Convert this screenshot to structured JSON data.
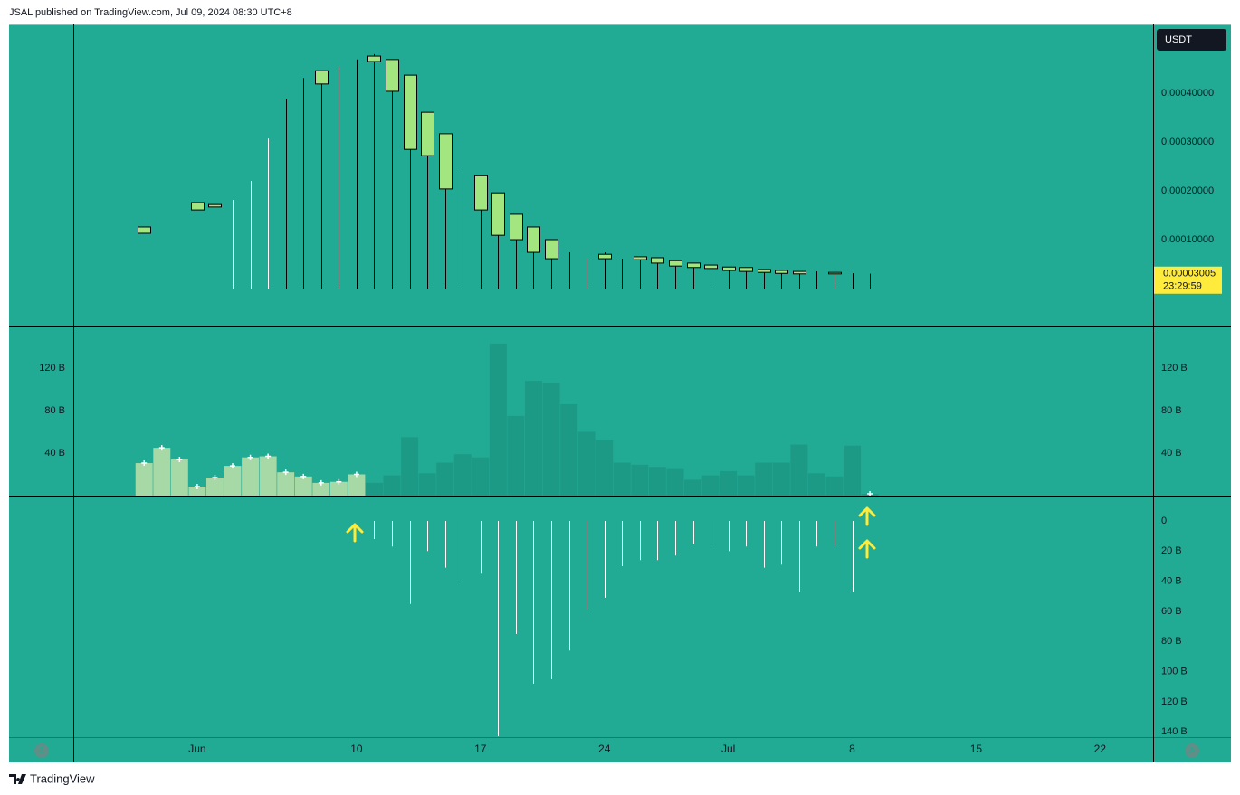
{
  "header": "JSAL published on TradingView.com, Jul 09, 2024 08:30 UTC+8",
  "footer_brand": "TradingView",
  "scale_buttons": [
    "Z",
    "A"
  ],
  "chart_data": [
    {
      "type": "candlestick",
      "currency": "USDT",
      "countdown": "23:29:59",
      "last_price": 3.005e-05,
      "color": "#a3e67f",
      "border_color": "#000000",
      "x": [
        "2024-05-29",
        "2024-06-01",
        "2024-06-02",
        "2024-06-03",
        "2024-06-04",
        "2024-06-05",
        "2024-06-06",
        "2024-06-07",
        "2024-06-08",
        "2024-06-09",
        "2024-06-10",
        "2024-06-11",
        "2024-06-12",
        "2024-06-13",
        "2024-06-14",
        "2024-06-15",
        "2024-06-16",
        "2024-06-17",
        "2024-06-18",
        "2024-06-19",
        "2024-06-20",
        "2024-06-21",
        "2024-06-22",
        "2024-06-23",
        "2024-06-24",
        "2024-06-25",
        "2024-06-26",
        "2024-06-27",
        "2024-06-28",
        "2024-06-29",
        "2024-06-30",
        "2024-07-01",
        "2024-07-02",
        "2024-07-03",
        "2024-07-04",
        "2024-07-05",
        "2024-07-06",
        "2024-07-07",
        "2024-07-08",
        "2024-07-09"
      ],
      "open": [
        0.000113,
        0.000161,
        0.000167,
        0.000181,
        0.00022,
        0.000307,
        0.000387,
        0.000431,
        0.000419,
        0.000456,
        0.000469,
        0.000465,
        0.000469,
        0.000437,
        0.000361,
        0.000317,
        0.000248,
        0.000231,
        0.000196,
        0.000152,
        0.000126,
        0.0001,
        7.4e-05,
        6.1e-05,
        7e-05,
        6.1e-05,
        6.5e-05,
        6.3e-05,
        5.7e-05,
        5.2e-05,
        4.8e-05,
        4.4e-05,
        4.3e-05,
        3.9e-05,
        3.7e-05,
        3.5e-05,
        3.5e-05,
        3.3e-05,
        3.1e-05,
        3.005e-05
      ],
      "high": [
        0.000126,
        0.000176,
        0.000172,
        0.000181,
        0.00022,
        0.000307,
        0.000387,
        0.000431,
        0.000446,
        0.000456,
        0.000469,
        0.00048,
        0.000469,
        0.000437,
        0.000361,
        0.000317,
        0.000248,
        0.000231,
        0.000196,
        0.000152,
        0.000126,
        0.0001,
        7.4e-05,
        6.1e-05,
        7.4e-05,
        6.1e-05,
        6.5e-05,
        6.3e-05,
        5.7e-05,
        5.2e-05,
        4.8e-05,
        4.4e-05,
        4.3e-05,
        3.9e-05,
        3.7e-05,
        3.5e-05,
        3.5e-05,
        3.3e-05,
        3.1e-05,
        3.005e-05
      ],
      "low": [
        0.000113,
        0.000161,
        0.000167,
        0,
        0,
        0,
        0,
        0,
        0,
        0,
        0,
        0,
        0,
        0,
        0,
        0,
        0,
        0,
        0,
        0,
        0,
        0,
        0,
        0,
        0,
        0,
        0,
        0,
        0,
        0,
        0,
        0,
        0,
        0,
        0,
        0,
        0,
        0,
        0,
        0
      ],
      "close": [
        0.000126,
        0.000176,
        0.000172,
        0.000181,
        0.00022,
        0.000307,
        0.000387,
        0.000431,
        0.000446,
        0.000456,
        0.000469,
        0.000476,
        0.000404,
        0.000285,
        0.000272,
        0.000204,
        0.000248,
        0.000161,
        0.000109,
        0.0001,
        7.4e-05,
        6.1e-05,
        7.4e-05,
        6.1e-05,
        6.1e-05,
        6.1e-05,
        5.9e-05,
        5.2e-05,
        4.6e-05,
        4.3e-05,
        4.1e-05,
        3.7e-05,
        3.5e-05,
        3.3e-05,
        3.1e-05,
        3e-05,
        3.5e-05,
        3e-05,
        3.1e-05,
        3.005e-05
      ],
      "wick_colors": [
        "#ffffff",
        "#ffffff",
        "#ffffff",
        "#ffffff",
        "#ffffff",
        "#ffffff",
        "#000000",
        "#000000",
        "#000000",
        "#000000",
        "#000000",
        "#000000",
        "#000000",
        "#000000",
        "#000000",
        "#000000",
        "#000000",
        "#000000",
        "#000000",
        "#000000",
        "#000000",
        "#000000",
        "#000000",
        "#000000",
        "#000000",
        "#000000",
        "#000000",
        "#000000",
        "#000000",
        "#000000",
        "#000000",
        "#000000",
        "#000000",
        "#000000",
        "#000000",
        "#000000",
        "#000000",
        "#000000",
        "#000000",
        "#000000"
      ],
      "ylim": [
        -7.6e-05,
        0.000541
      ],
      "yticks": [
        {
          "value": 0.0001,
          "label": "0.00010000"
        },
        {
          "value": 0.0002,
          "label": "0.00020000"
        },
        {
          "value": 0.0003,
          "label": "0.00030000"
        },
        {
          "value": 0.0004,
          "label": "0.00040000"
        }
      ],
      "ytick_sides": [
        "right"
      ]
    },
    {
      "type": "bar",
      "x": [
        "2024-05-29",
        "2024-05-30",
        "2024-05-31",
        "2024-06-01",
        "2024-06-02",
        "2024-06-03",
        "2024-06-04",
        "2024-06-05",
        "2024-06-06",
        "2024-06-07",
        "2024-06-08",
        "2024-06-09",
        "2024-06-10",
        "2024-06-11",
        "2024-06-12",
        "2024-06-13",
        "2024-06-14",
        "2024-06-15",
        "2024-06-16",
        "2024-06-17",
        "2024-06-18",
        "2024-06-19",
        "2024-06-20",
        "2024-06-21",
        "2024-06-22",
        "2024-06-23",
        "2024-06-24",
        "2024-06-25",
        "2024-06-26",
        "2024-06-27",
        "2024-06-28",
        "2024-06-29",
        "2024-06-30",
        "2024-07-01",
        "2024-07-02",
        "2024-07-03",
        "2024-07-04",
        "2024-07-05",
        "2024-07-06",
        "2024-07-07",
        "2024-07-08",
        "2024-07-09"
      ],
      "values": [
        30.6,
        45,
        34,
        8.5,
        17,
        28,
        36,
        37,
        22,
        18,
        12,
        13,
        20,
        12,
        19,
        55,
        21,
        31,
        39,
        36,
        143,
        75,
        108,
        106,
        86,
        60,
        52,
        31,
        29,
        27,
        25,
        15,
        19,
        23,
        19,
        31,
        31,
        48,
        21,
        18,
        47,
        1.7
      ],
      "colors": [
        "#a6d9a6",
        "#a6d9a6",
        "#a6d9a6",
        "#a6d9a6",
        "#a6d9a6",
        "#a6d9a6",
        "#a6d9a6",
        "#a6d9a6",
        "#a6d9a6",
        "#a6d9a6",
        "#a6d9a6",
        "#a6d9a6",
        "#a6d9a6",
        "#1d9a86",
        "#1d9a86",
        "#1d9a86",
        "#1d9a86",
        "#1d9a86",
        "#1d9a86",
        "#1d9a86",
        "#1d9a86",
        "#1d9a86",
        "#1d9a86",
        "#1d9a86",
        "#1d9a86",
        "#1d9a86",
        "#1d9a86",
        "#1d9a86",
        "#1d9a86",
        "#1d9a86",
        "#1d9a86",
        "#1d9a86",
        "#1d9a86",
        "#1d9a86",
        "#1d9a86",
        "#1d9a86",
        "#1d9a86",
        "#1d9a86",
        "#1d9a86",
        "#1d9a86",
        "#1d9a86",
        "#1d9a86"
      ],
      "markers": [
        true,
        true,
        true,
        true,
        true,
        true,
        true,
        true,
        true,
        true,
        true,
        true,
        true,
        false,
        false,
        false,
        false,
        false,
        false,
        false,
        false,
        false,
        false,
        false,
        false,
        false,
        false,
        false,
        false,
        false,
        false,
        false,
        false,
        false,
        false,
        false,
        false,
        false,
        false,
        false,
        false,
        true
      ],
      "marker_color": "#ffffff",
      "ylim": [
        0,
        160
      ],
      "yticks": [
        {
          "value": 40,
          "label": "40 B"
        },
        {
          "value": 80,
          "label": "80 B"
        },
        {
          "value": 120,
          "label": "120 B"
        }
      ],
      "ytick_sides": [
        "left",
        "right"
      ]
    },
    {
      "type": "stem",
      "inverted": true,
      "color": "#ffffff",
      "x": [
        "2024-06-11",
        "2024-06-12",
        "2024-06-13",
        "2024-06-14",
        "2024-06-15",
        "2024-06-16",
        "2024-06-17",
        "2024-06-18",
        "2024-06-19",
        "2024-06-20",
        "2024-06-21",
        "2024-06-22",
        "2024-06-23",
        "2024-06-24",
        "2024-06-25",
        "2024-06-26",
        "2024-06-27",
        "2024-06-28",
        "2024-06-29",
        "2024-06-30",
        "2024-07-01",
        "2024-07-02",
        "2024-07-03",
        "2024-07-04",
        "2024-07-05",
        "2024-07-06",
        "2024-07-07",
        "2024-07-08"
      ],
      "values": [
        12,
        17,
        55,
        20,
        31,
        39,
        35,
        143,
        75,
        108,
        105,
        86,
        59,
        51,
        30,
        26,
        26,
        23,
        15,
        19,
        20,
        17,
        31,
        29,
        47,
        17,
        17,
        47
      ],
      "ylim": [
        -16.8,
        143.5
      ],
      "yticks": [
        0,
        {
          "value": 20,
          "label": "20 B"
        },
        {
          "value": 40,
          "label": "40 B"
        },
        {
          "value": 60,
          "label": "60 B"
        },
        {
          "value": 80,
          "label": "80 B"
        },
        {
          "value": 100,
          "label": "100 B"
        },
        {
          "value": 120,
          "label": "120 B"
        },
        {
          "value": 140,
          "label": "140 B"
        }
      ],
      "ytick_sides": [
        "right"
      ],
      "xlim": [
        "2024-05-25",
        "2024-07-25"
      ],
      "xticks": [
        {
          "value": "2024-06-01",
          "label": "Jun"
        },
        {
          "value": "2024-06-10",
          "label": "10"
        },
        {
          "value": "2024-06-17",
          "label": "17"
        },
        {
          "value": "2024-06-24",
          "label": "24"
        },
        {
          "value": "2024-07-01",
          "label": "Jul"
        },
        {
          "value": "2024-07-08",
          "label": "8"
        },
        {
          "value": "2024-07-15",
          "label": "15"
        },
        {
          "value": "2024-07-22",
          "label": "22"
        }
      ]
    }
  ]
}
